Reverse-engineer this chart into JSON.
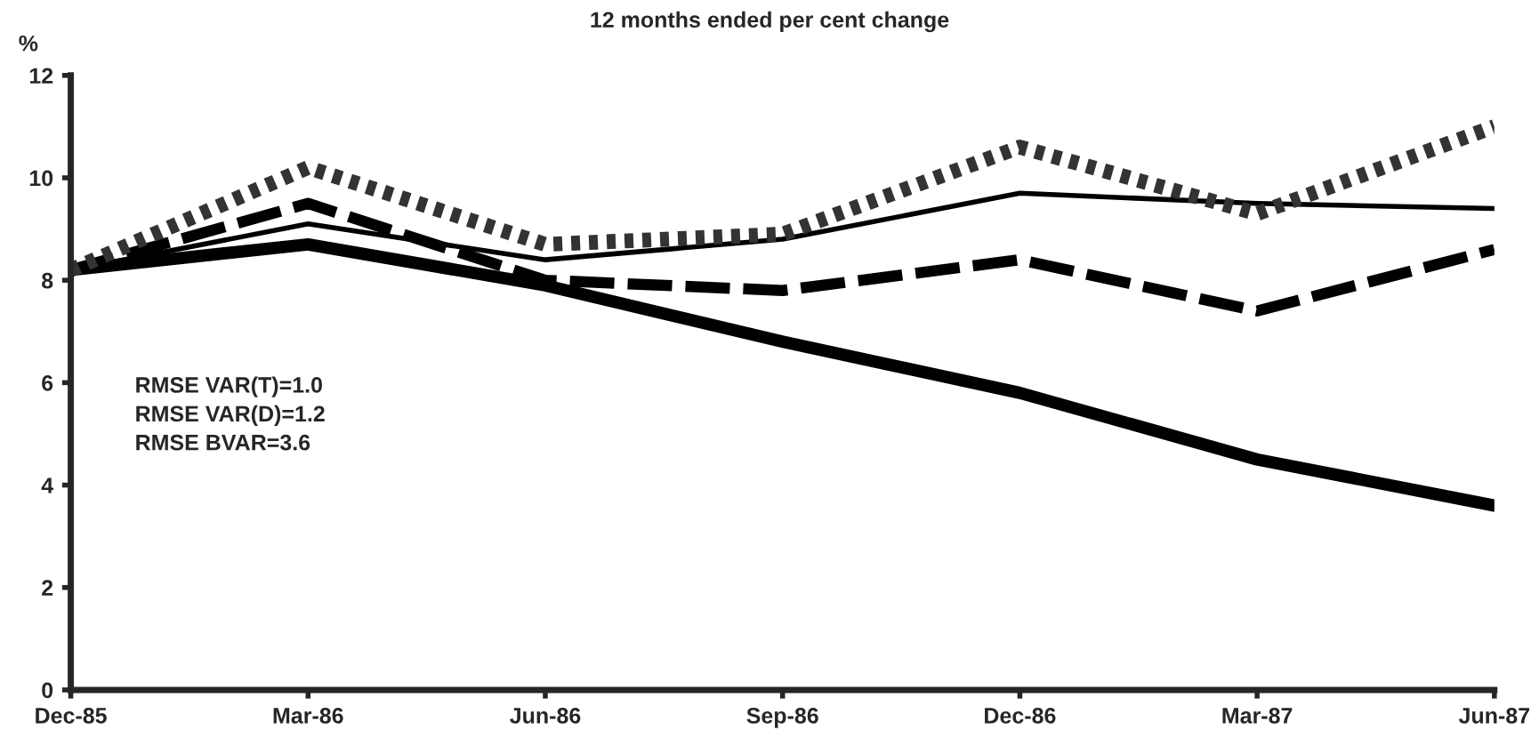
{
  "chart_data": {
    "type": "line",
    "title": "12 months ended per cent change",
    "ylabel": "%",
    "categories": [
      "Dec-85",
      "Mar-86",
      "Jun-86",
      "Sep-86",
      "Dec-86",
      "Mar-87",
      "Jun-87"
    ],
    "series": [
      {
        "color": "#000000",
        "line_style": "solid",
        "values": [
          8.2,
          9.1,
          8.4,
          8.8,
          9.7,
          9.5,
          9.4
        ]
      },
      {
        "color": "#000000",
        "line_style": "solid",
        "values": [
          8.2,
          8.7,
          7.9,
          6.8,
          5.8,
          4.5,
          3.6
        ]
      },
      {
        "color": "#000000",
        "line_style": "dashed",
        "values": [
          8.2,
          9.5,
          8.0,
          7.8,
          8.4,
          7.4,
          8.6
        ]
      },
      {
        "color": "#333333",
        "line_style": "dotted",
        "values": [
          8.2,
          10.2,
          8.7,
          8.9,
          10.6,
          9.3,
          11.0
        ]
      }
    ],
    "ylim": [
      0,
      12
    ],
    "yticks": [
      0,
      2,
      4,
      6,
      8,
      10,
      12
    ],
    "grid": false,
    "legend": false,
    "marker": "none",
    "annotations": [
      "RMSE VAR(T)=1.0\nRMSE VAR(D)=1.2\nRMSE BVAR=3.6"
    ]
  }
}
